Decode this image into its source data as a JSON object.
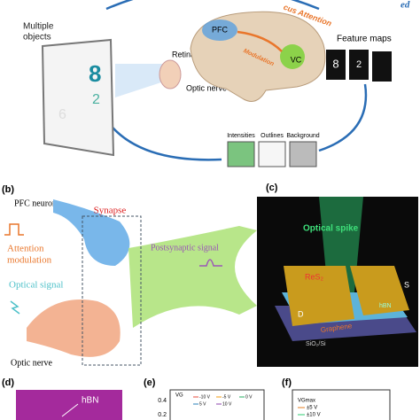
{
  "panel_a": {
    "partial_label": "ed",
    "objects_label": [
      "Multiple",
      "objects"
    ],
    "digits": [
      "8",
      "2",
      "6"
    ],
    "retina": "Retina",
    "optic_nerve": "Optic nerve",
    "pfc": "PFC",
    "vc": "VC",
    "modulation": "Modulation",
    "attention": "cus Attention",
    "feature_maps": "Feature maps",
    "map_digits": [
      "8",
      "2"
    ],
    "intensities": "Intensities",
    "outlines": "Outlines",
    "background": "Background"
  },
  "panel_b": {
    "label": "(b)",
    "pfc_neuron": "PFC neuron",
    "synapse": "Synapse",
    "attention_modulation": [
      "Attention",
      "modulation"
    ],
    "postsynaptic": "Postsynaptic signal",
    "optical_signal": "Optical signal",
    "optic_nerve": "Optic nerve"
  },
  "panel_c": {
    "label": "(c)",
    "optical_spike": "Optical spike",
    "res2": "ReS₂",
    "source": "S",
    "drain": "D",
    "hbn": "hBN",
    "graphene": "Graphene",
    "substrate": "SiO₂/Si"
  },
  "panel_d": {
    "label": "(d)",
    "hbn": "hBN"
  },
  "panel_e": {
    "label": "(e)",
    "legend_title": "VG",
    "legend": [
      "-10 V",
      "-5 V",
      "0 V",
      "5 V",
      "10 V"
    ],
    "yticks": [
      "0.4",
      "0.2"
    ]
  },
  "panel_f": {
    "label": "(f)",
    "legend_title": "VGmax",
    "legend": [
      "±5 V",
      "±10 V"
    ]
  }
}
